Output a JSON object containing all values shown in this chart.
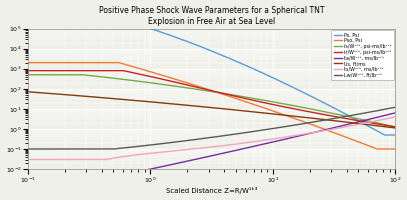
{
  "title": "Positive Phase Shock Wave Parameters for a Spherical TNT\nExplosion in Free Air at Sea Level",
  "xlabel": "Scaled Distance Z=R/W¹ᵏ³",
  "xlim": [
    0.1,
    100
  ],
  "ylim": [
    0.01,
    100000.0
  ],
  "background_color": "#f0f0eb",
  "grid_color": "#ffffff",
  "legend_entries": [
    "Ps, Psi",
    "Pso, Psi",
    "is/W¹ᐟ³, psi-ms/lb¹ᐟ³",
    "ir/W¹ᐟ³, psi-ms/lb¹ᐟ³",
    "ta/W¹ᐟ³, ms/lb¹ᐟ³",
    "Us, ft/ms",
    "ts/W¹ᐟ³, ms/lb¹ᐟ³",
    "Lw/W¹ᐟ³, ft/lb¹ᐟ³"
  ],
  "line_colors": [
    "#5b9bd5",
    "#ed7d31",
    "#70ad47",
    "#cc2222",
    "#7030a0",
    "#843c0c",
    "#f4a4c0",
    "#595959"
  ],
  "line_widths": [
    1.0,
    1.0,
    1.0,
    1.0,
    1.0,
    1.0,
    1.0,
    1.0
  ]
}
